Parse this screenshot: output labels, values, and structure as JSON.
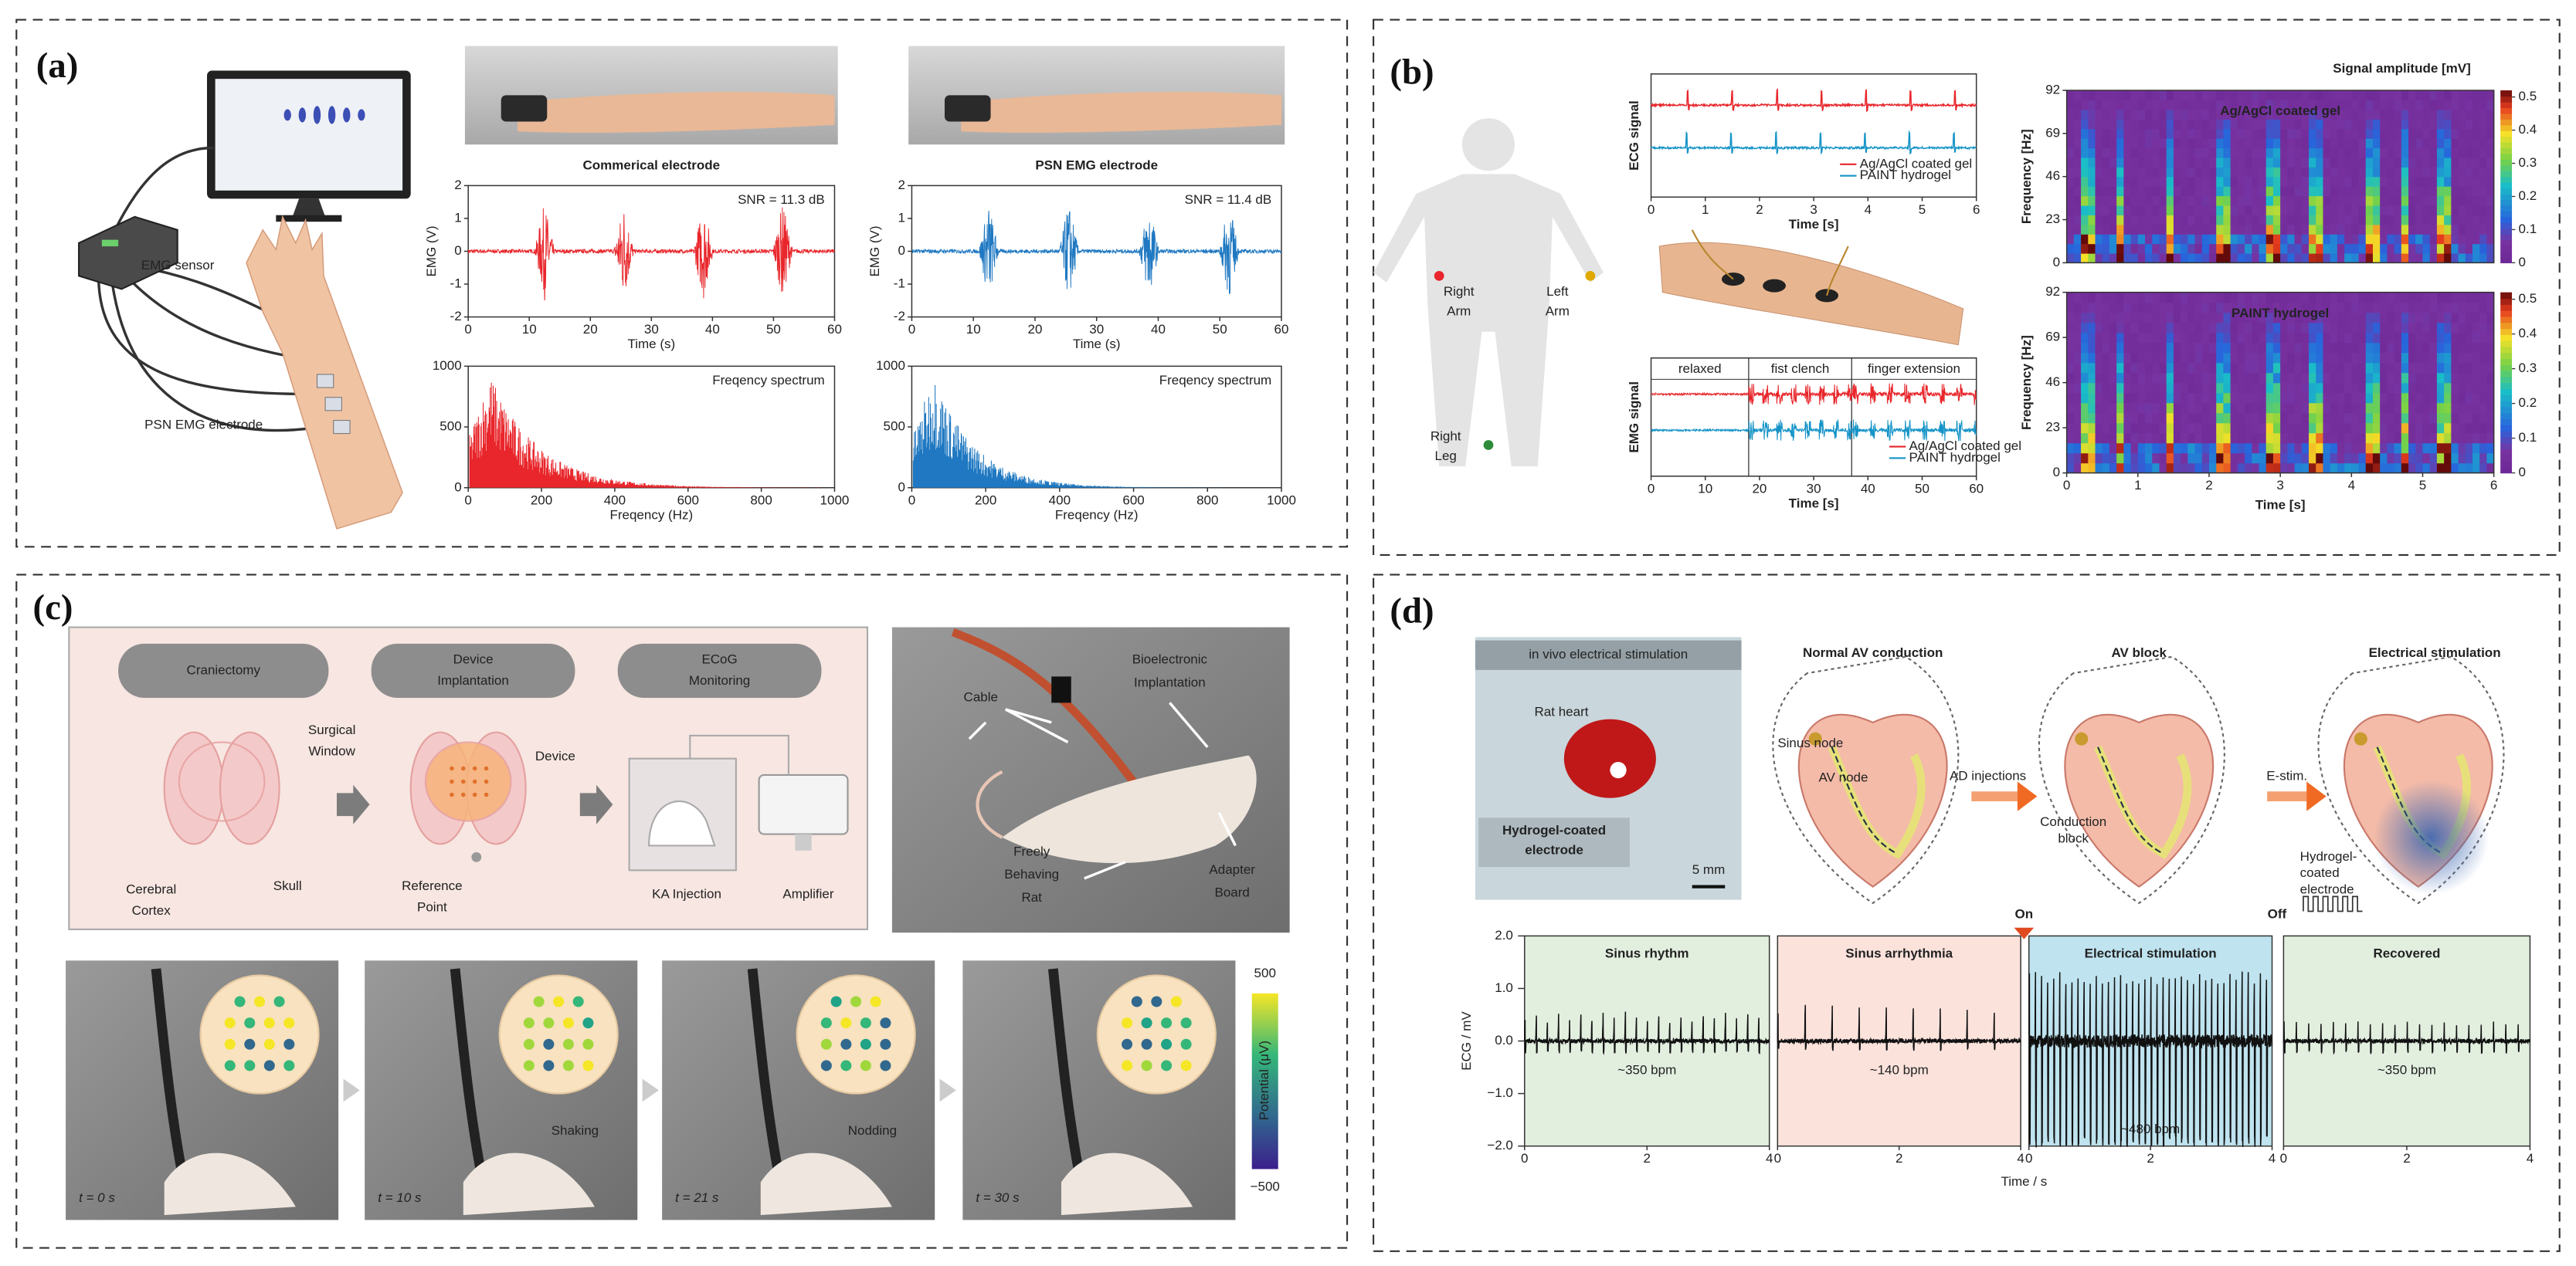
{
  "panel_a": {
    "label": "(a)",
    "sensor": "EMG sensor",
    "electrode": "PSN EMG electrode",
    "charts": [
      {
        "title": "Commerical electrode",
        "color": "#e8262b",
        "emg": {
          "ylabel": "EMG (V)",
          "xlabel": "Time (s)",
          "note": "SNR = 11.3 dB",
          "xlim": [
            0,
            60
          ],
          "xticks": [
            0,
            10,
            20,
            30,
            40,
            50,
            60
          ],
          "ylim": [
            -2,
            2
          ],
          "yticks": [
            -2,
            -1,
            0,
            1,
            2
          ]
        },
        "spectrum": {
          "xlabel": "Freqency (Hz)",
          "note": "Freqency spectrum",
          "xlim": [
            0,
            1000
          ],
          "xticks": [
            0,
            200,
            400,
            600,
            800,
            1000
          ],
          "ylim": [
            0,
            1000
          ],
          "yticks": [
            0,
            500,
            1000
          ]
        }
      },
      {
        "title": "PSN EMG electrode",
        "color": "#1f78c1",
        "emg": {
          "ylabel": "EMG (V)",
          "xlabel": "Time (s)",
          "note": "SNR = 11.4 dB",
          "xlim": [
            0,
            60
          ],
          "xticks": [
            0,
            10,
            20,
            30,
            40,
            50,
            60
          ],
          "ylim": [
            -2,
            2
          ],
          "yticks": [
            -2,
            -1,
            0,
            1,
            2
          ]
        },
        "spectrum": {
          "xlabel": "Freqency (Hz)",
          "note": "Freqency spectrum",
          "xlim": [
            0,
            1000
          ],
          "xticks": [
            0,
            200,
            400,
            600,
            800,
            1000
          ],
          "ylim": [
            0,
            1000
          ],
          "yticks": [
            0,
            500,
            1000
          ]
        }
      }
    ]
  },
  "panel_b": {
    "label": "(b)",
    "body_labels": [
      {
        "lines": [
          "Right",
          "Arm"
        ],
        "color": "#e8262b"
      },
      {
        "lines": [
          "Left",
          "Arm"
        ],
        "color": "#e0a800"
      },
      {
        "lines": [
          "Right",
          "Leg"
        ],
        "color": "#2e8b3a"
      }
    ],
    "legend": [
      {
        "name": "Ag/AgCl coated gel",
        "color": "#e8262b"
      },
      {
        "name": "PAINT hydrogel",
        "color": "#1493c7"
      }
    ],
    "ecg": {
      "ylabel": "ECG signal",
      "xlabel": "Time [s]",
      "xlim": [
        0,
        6
      ],
      "xticks": [
        0,
        1,
        2,
        3,
        4,
        5,
        6
      ]
    },
    "emg": {
      "ylabel": "EMG signal",
      "xlabel": "Time [s]",
      "xlim": [
        0,
        60
      ],
      "xticks": [
        0,
        10,
        20,
        30,
        40,
        50,
        60
      ],
      "phases": [
        "relaxed",
        "fist clench",
        "finger extension"
      ]
    },
    "spectrogram": {
      "title": "Signal amplitude [mV]",
      "ylabel": "Frequency [Hz]",
      "xlabel": "Time [s]",
      "ylim": [
        0,
        92
      ],
      "yticks": [
        0,
        23,
        46,
        69,
        92
      ],
      "xlim": [
        0,
        6
      ],
      "xticks": [
        0,
        1,
        2,
        3,
        4,
        5,
        6
      ],
      "cbar_lim": [
        0,
        0.52
      ],
      "cbar_ticks": [
        0,
        0.1,
        0.2,
        0.3,
        0.4,
        0.5
      ],
      "maps": [
        "Ag/AgCl coated gel",
        "PAINT hydrogel"
      ]
    }
  },
  "panel_c": {
    "label": "(c)",
    "steps": [
      [
        "Craniectomy"
      ],
      [
        "Device",
        "Implantation"
      ],
      [
        "ECoG",
        "Monitoring"
      ]
    ],
    "labels": {
      "surgical_window": [
        "Surgical",
        "Window"
      ],
      "cerebral_cortex": [
        "Cerebral",
        "Cortex"
      ],
      "skull": "Skull",
      "device": "Device",
      "reference_point": [
        "Reference",
        "Point"
      ],
      "ka_injection": "KA Injection",
      "amplifier": "Amplifier",
      "cable": "Cable",
      "implantation": [
        "Bioelectronic",
        "Implantation"
      ],
      "rat": [
        "Freely",
        "Behaving",
        "Rat"
      ],
      "adapter": [
        "Adapter",
        "Board"
      ]
    },
    "frames": [
      {
        "time": "t = 0 s"
      },
      {
        "time": "t = 10 s",
        "behavior": "Shaking"
      },
      {
        "time": "t = 21 s",
        "behavior": "Nodding"
      },
      {
        "time": "t = 30 s"
      }
    ],
    "colorbar": {
      "label": "Potential (μV)",
      "lim": [
        -500,
        500
      ],
      "ticks": [
        {
          "value": -500,
          "label": "−500"
        },
        500
      ]
    }
  },
  "panel_d": {
    "label": "(d)",
    "photo": {
      "title": "in vivo electrical stimulation",
      "heart": "Rat heart",
      "electrode": [
        "Hydrogel-coated",
        "electrode"
      ],
      "scale": "5 mm"
    },
    "schematics": {
      "normal": "Normal AV conduction",
      "block": "AV block",
      "stim": "Electrical stimulation",
      "sinus_node": "Sinus node",
      "av_node": "AV node",
      "ad": "AD injections",
      "conduction_block": [
        "Conduction",
        "block"
      ],
      "estim": "E-stim.",
      "hydrogel": [
        "Hydrogel-",
        "coated",
        "electrode"
      ]
    },
    "ecg": {
      "ylabel": "ECG / mV",
      "xlabel": "Time / s",
      "on": "On",
      "off": "Off",
      "ylim": [
        -2,
        2
      ],
      "yticks": [
        {
          "value": -2,
          "label": "−2.0"
        },
        {
          "value": -1,
          "label": "−1.0"
        },
        {
          "value": 0,
          "label": "0.0"
        },
        {
          "value": 1,
          "label": "1.0"
        },
        {
          "value": 2,
          "label": "2.0"
        }
      ],
      "segments": [
        {
          "name": "Sinus rhythm",
          "rate": "~350  bpm",
          "color": "#e2efdf",
          "xlim": [
            0,
            4
          ],
          "xticks": [
            0,
            2,
            4
          ]
        },
        {
          "name": "Sinus arrhythmia",
          "rate": "~140  bpm",
          "color": "#fbe3dc",
          "xlim": [
            0,
            4
          ],
          "xticks": [
            0,
            2,
            4
          ]
        },
        {
          "name": "Electrical stimulation",
          "rate": "~480  bpm",
          "color": "#bfe3ef",
          "xlim": [
            0,
            4
          ],
          "xticks": [
            0,
            2,
            4
          ]
        },
        {
          "name": "Recovered",
          "rate": "~350  bpm",
          "color": "#e2efdf",
          "xlim": [
            0,
            4
          ],
          "xticks": [
            0,
            2,
            4
          ]
        }
      ]
    }
  }
}
